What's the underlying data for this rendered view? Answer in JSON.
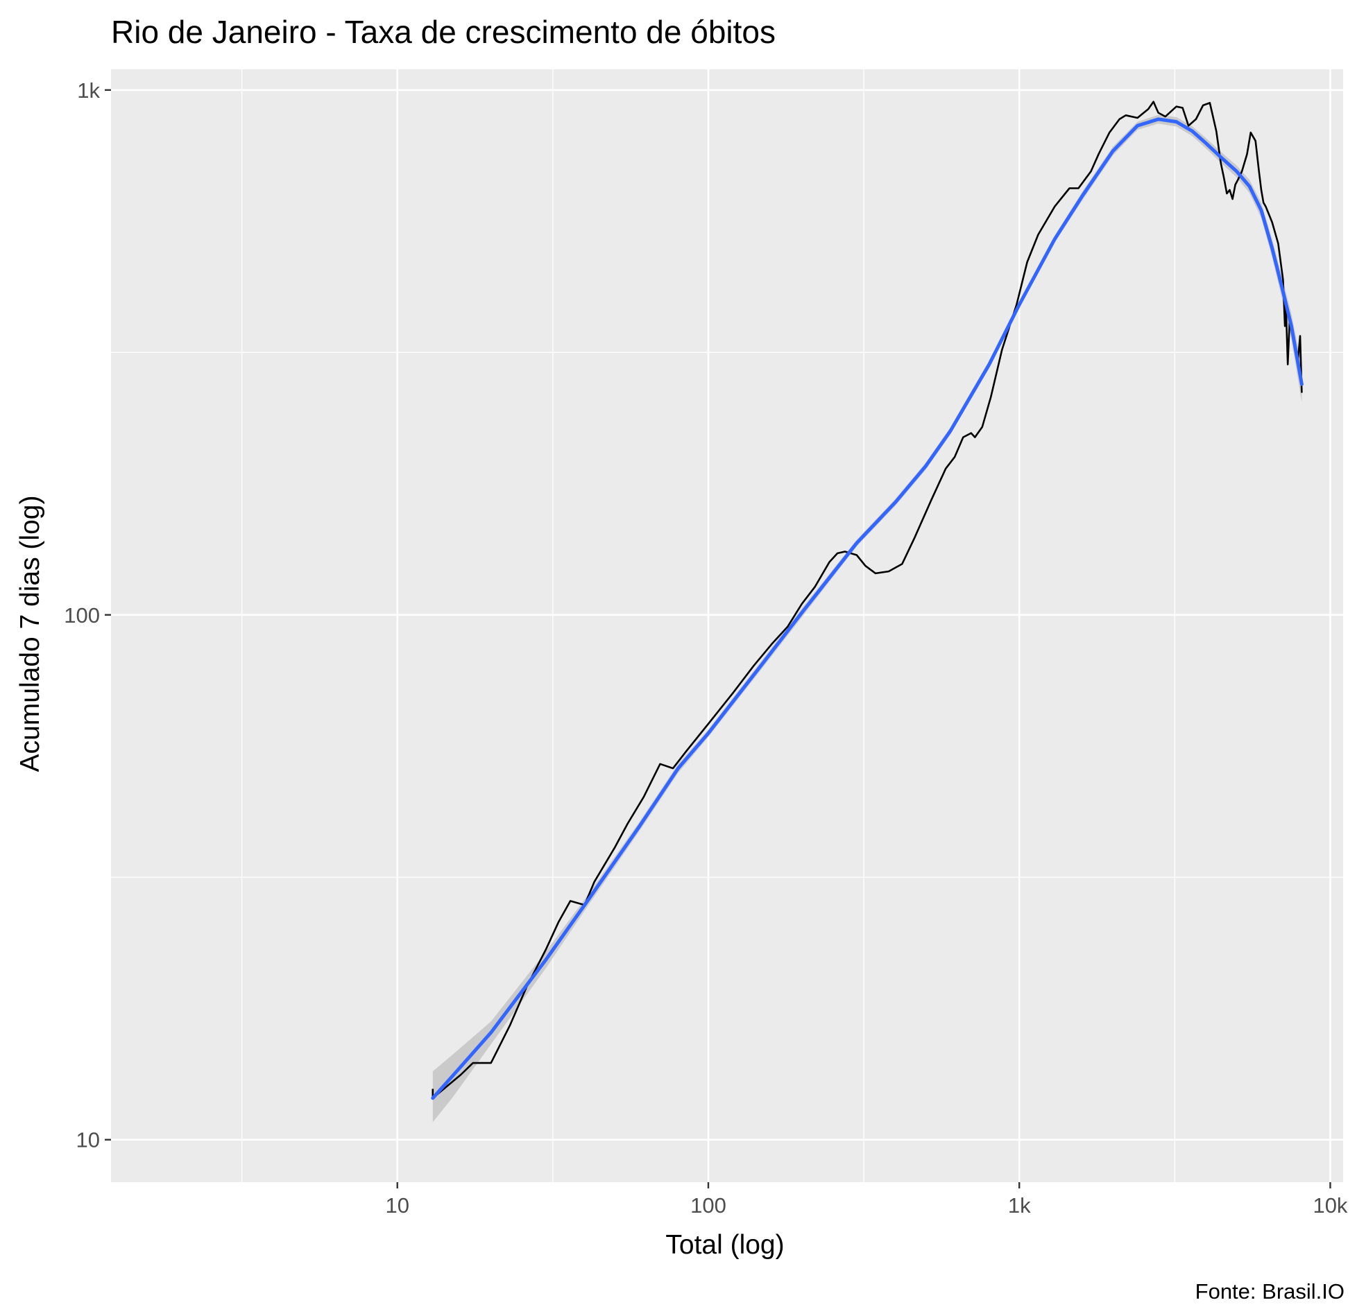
{
  "chart_data": {
    "type": "line",
    "title": "Rio de Janeiro - Taxa de crescimento de óbitos",
    "xlabel": "Total (log)",
    "ylabel": "Acumulado 7 dias (log)",
    "caption": "Fonte: Brasil.IO",
    "x_scale": "log10",
    "y_scale": "log10",
    "xlim": [
      1.2,
      11000
    ],
    "ylim": [
      8.3,
      1095
    ],
    "x_ticks": [
      {
        "value": 10,
        "label": "10"
      },
      {
        "value": 100,
        "label": "100"
      },
      {
        "value": 1000,
        "label": "1k"
      },
      {
        "value": 10000,
        "label": "10k"
      }
    ],
    "y_ticks": [
      {
        "value": 10,
        "label": "10"
      },
      {
        "value": 100,
        "label": "100"
      },
      {
        "value": 1000,
        "label": "1k"
      }
    ],
    "grid": true,
    "background": "#ebebeb",
    "series": [
      {
        "kind": "observed",
        "color": "#000000",
        "points": [
          [
            13,
            12.5
          ],
          [
            13,
            12
          ],
          [
            16,
            13.3
          ],
          [
            17.5,
            14
          ],
          [
            19,
            14
          ],
          [
            20,
            14
          ],
          [
            23,
            16.5
          ],
          [
            26,
            19.5
          ],
          [
            30,
            23
          ],
          [
            33,
            26
          ],
          [
            36,
            28.5
          ],
          [
            40,
            28
          ],
          [
            43,
            31
          ],
          [
            50,
            36
          ],
          [
            55,
            40
          ],
          [
            62,
            45
          ],
          [
            70,
            52
          ],
          [
            77,
            51
          ],
          [
            85,
            55
          ],
          [
            100,
            62
          ],
          [
            120,
            71
          ],
          [
            140,
            80
          ],
          [
            160,
            88
          ],
          [
            180,
            95
          ],
          [
            200,
            105
          ],
          [
            220,
            113
          ],
          [
            245,
            126
          ],
          [
            260,
            131
          ],
          [
            275,
            132
          ],
          [
            300,
            130
          ],
          [
            320,
            124
          ],
          [
            345,
            120
          ],
          [
            380,
            121
          ],
          [
            420,
            125
          ],
          [
            460,
            140
          ],
          [
            520,
            165
          ],
          [
            580,
            190
          ],
          [
            620,
            200
          ],
          [
            660,
            218
          ],
          [
            700,
            222
          ],
          [
            720,
            218
          ],
          [
            760,
            228
          ],
          [
            810,
            260
          ],
          [
            880,
            320
          ],
          [
            980,
            390
          ],
          [
            1060,
            470
          ],
          [
            1150,
            530
          ],
          [
            1300,
            600
          ],
          [
            1450,
            650
          ],
          [
            1550,
            650
          ],
          [
            1700,
            700
          ],
          [
            1800,
            755
          ],
          [
            1950,
            830
          ],
          [
            2100,
            880
          ],
          [
            2200,
            895
          ],
          [
            2400,
            885
          ],
          [
            2600,
            920
          ],
          [
            2700,
            950
          ],
          [
            2800,
            905
          ],
          [
            2950,
            890
          ],
          [
            3200,
            930
          ],
          [
            3350,
            925
          ],
          [
            3500,
            855
          ],
          [
            3700,
            880
          ],
          [
            3900,
            935
          ],
          [
            4100,
            945
          ],
          [
            4300,
            835
          ],
          [
            4450,
            725
          ],
          [
            4550,
            680
          ],
          [
            4650,
            635
          ],
          [
            4750,
            645
          ],
          [
            4850,
            620
          ],
          [
            4950,
            660
          ],
          [
            5050,
            675
          ],
          [
            5200,
            700
          ],
          [
            5400,
            755
          ],
          [
            5550,
            830
          ],
          [
            5750,
            800
          ],
          [
            5900,
            700
          ],
          [
            6000,
            645
          ],
          [
            6100,
            610
          ],
          [
            6200,
            600
          ],
          [
            6500,
            560
          ],
          [
            6800,
            510
          ],
          [
            7050,
            435
          ],
          [
            7150,
            355
          ],
          [
            7200,
            390
          ],
          [
            7300,
            300
          ],
          [
            7400,
            360
          ],
          [
            7600,
            345
          ],
          [
            7850,
            300
          ],
          [
            8000,
            340
          ],
          [
            8100,
            265
          ]
        ]
      },
      {
        "kind": "smooth",
        "color": "#3366ff",
        "ribbon_color": "#bfbfbf",
        "points": [
          [
            13,
            12
          ],
          [
            15,
            13.2
          ],
          [
            20,
            16
          ],
          [
            30,
            22
          ],
          [
            40,
            28
          ],
          [
            60,
            39.5
          ],
          [
            80,
            51
          ],
          [
            100,
            59.5
          ],
          [
            150,
            81
          ],
          [
            200,
            101
          ],
          [
            300,
            137
          ],
          [
            400,
            164
          ],
          [
            500,
            192
          ],
          [
            600,
            224
          ],
          [
            800,
            300
          ],
          [
            1000,
            390
          ],
          [
            1300,
            520
          ],
          [
            1600,
            630
          ],
          [
            2000,
            765
          ],
          [
            2400,
            855
          ],
          [
            2800,
            880
          ],
          [
            3200,
            870
          ],
          [
            3600,
            835
          ],
          [
            4000,
            790
          ],
          [
            4500,
            740
          ],
          [
            5000,
            700
          ],
          [
            5500,
            655
          ],
          [
            6000,
            590
          ],
          [
            6500,
            500
          ],
          [
            7000,
            420
          ],
          [
            7500,
            355
          ],
          [
            8100,
            275
          ]
        ],
        "upper": [
          [
            13,
            13.5
          ],
          [
            15,
            14.5
          ],
          [
            20,
            16.8
          ],
          [
            30,
            22.8
          ],
          [
            40,
            28.7
          ],
          [
            60,
            40.3
          ],
          [
            80,
            52
          ],
          [
            100,
            60.5
          ],
          [
            150,
            82.5
          ],
          [
            200,
            103
          ],
          [
            300,
            139
          ],
          [
            400,
            166.5
          ],
          [
            500,
            195
          ],
          [
            600,
            227.5
          ],
          [
            800,
            305
          ],
          [
            1000,
            396
          ],
          [
            1300,
            528
          ],
          [
            1600,
            642
          ],
          [
            2000,
            780
          ],
          [
            2400,
            870
          ],
          [
            2800,
            897
          ],
          [
            3200,
            888
          ],
          [
            3600,
            853
          ],
          [
            4000,
            808
          ],
          [
            4500,
            758
          ],
          [
            5000,
            718
          ],
          [
            5500,
            674
          ],
          [
            6000,
            610
          ],
          [
            6500,
            520
          ],
          [
            7000,
            440
          ],
          [
            7500,
            375
          ],
          [
            8100,
            298
          ]
        ],
        "lower": [
          [
            13,
            10.8
          ],
          [
            15,
            12
          ],
          [
            20,
            15.2
          ],
          [
            30,
            21.2
          ],
          [
            40,
            27.3
          ],
          [
            60,
            38.7
          ],
          [
            80,
            50
          ],
          [
            100,
            58.5
          ],
          [
            150,
            79.5
          ],
          [
            200,
            99
          ],
          [
            300,
            135
          ],
          [
            400,
            161.5
          ],
          [
            500,
            189
          ],
          [
            600,
            220.5
          ],
          [
            800,
            295
          ],
          [
            1000,
            384
          ],
          [
            1300,
            512
          ],
          [
            1600,
            618
          ],
          [
            2000,
            750
          ],
          [
            2400,
            840
          ],
          [
            2800,
            863
          ],
          [
            3200,
            852
          ],
          [
            3600,
            817
          ],
          [
            4000,
            772
          ],
          [
            4500,
            722
          ],
          [
            5000,
            682
          ],
          [
            5500,
            636
          ],
          [
            6000,
            570
          ],
          [
            6500,
            480
          ],
          [
            7000,
            400
          ],
          [
            7500,
            335
          ],
          [
            8100,
            254
          ]
        ]
      }
    ]
  }
}
